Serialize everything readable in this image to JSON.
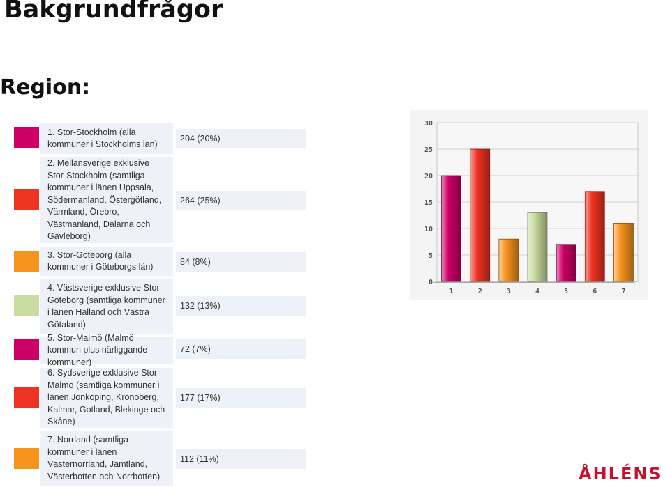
{
  "title": "Bakgrundfrågor",
  "question": "Region:",
  "rows": [
    {
      "label": "1. Stor-Stockholm (alla kommuner i Stockholms län)",
      "count": "204 (20%)"
    },
    {
      "label": "2. Mellansverige exklusive Stor-Stockholm (samtliga kommuner i länen Uppsala, Södermanland, Östergötland, Värmland, Örebro, Västmanland, Dalarna och Gävleborg)",
      "count": "264 (25%)"
    },
    {
      "label": "3. Stor-Göteborg (alla kommuner i Göteborgs län)",
      "count": "84 (8%)"
    },
    {
      "label": "4. Västsverige exklusive Stor-Göteborg (samtliga kommuner i länen Halland och Västra Götaland)",
      "count": "132 (13%)"
    },
    {
      "label": "5. Stor-Malmö (Malmö kommun plus närliggande kommuner)",
      "count": "72 (7%)"
    },
    {
      "label": "6. Sydsverige exklusive Stor-Malmö (samtliga kommuner i länen Jönköping, Kronoberg, Kalmar, Gotland, Blekinge och Skåne)",
      "count": "177 (17%)"
    },
    {
      "label": "7. Norrland (samtliga kommuner i länen Västernorrland, Jämtland, Västerbotten och Norrbotten)",
      "count": "112 (11%)"
    }
  ],
  "colors": [
    "#cc0066",
    "#ee3322",
    "#f7941d",
    "#c8dba0",
    "#cc0066",
    "#ee3322",
    "#f7941d"
  ],
  "chart_data": {
    "type": "bar",
    "categories": [
      "1",
      "2",
      "3",
      "4",
      "5",
      "6",
      "7"
    ],
    "values": [
      20,
      25,
      8,
      13,
      7,
      17,
      11
    ],
    "ylim": [
      0,
      30
    ],
    "yticks": [
      "0",
      "5",
      "10",
      "15",
      "20",
      "25",
      "30"
    ],
    "grid": true,
    "title": "",
    "xlabel": "",
    "ylabel": ""
  },
  "logo": "ÅHLÉNS"
}
